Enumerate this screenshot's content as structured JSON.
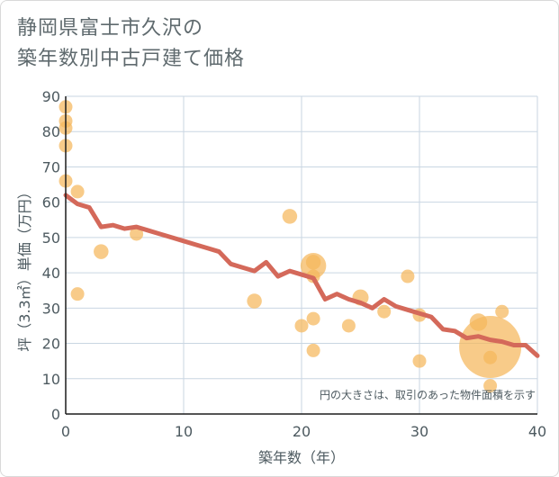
{
  "chart_data": {
    "type": "scatter",
    "title_lines": [
      "静岡県富士市久沢の",
      "築年数別中古戸建て価格"
    ],
    "xlabel": "築年数（年）",
    "ylabel": "坪（3.3㎡）単価（万円）",
    "xlim": [
      0,
      40
    ],
    "ylim": [
      0,
      90
    ],
    "xticks": [
      "0",
      "10",
      "20",
      "30",
      "40"
    ],
    "yticks": [
      "0",
      "10",
      "20",
      "30",
      "40",
      "50",
      "60",
      "70",
      "80",
      "90"
    ],
    "xtick_values": [
      0,
      10,
      20,
      30,
      40
    ],
    "ytick_values": [
      0,
      10,
      20,
      30,
      40,
      50,
      60,
      70,
      80,
      90
    ],
    "grid": true,
    "note": "円の大きさは、取引のあった物件面積を示す",
    "colors": {
      "bubble": "#f5b75c",
      "line": "#d4695a",
      "grid": "#c9d6e2",
      "axis": "#1c1c1c",
      "text": "#4d5a60"
    },
    "bubbles": [
      {
        "x": 0,
        "y": 87,
        "r": 1
      },
      {
        "x": 0,
        "y": 83,
        "r": 1
      },
      {
        "x": 0,
        "y": 81,
        "r": 1
      },
      {
        "x": 0,
        "y": 76,
        "r": 1
      },
      {
        "x": 0,
        "y": 66,
        "r": 1
      },
      {
        "x": 1,
        "y": 63,
        "r": 1
      },
      {
        "x": 1,
        "y": 34,
        "r": 1
      },
      {
        "x": 3,
        "y": 46,
        "r": 1.1
      },
      {
        "x": 6,
        "y": 51,
        "r": 1
      },
      {
        "x": 16,
        "y": 32,
        "r": 1.1
      },
      {
        "x": 19,
        "y": 56,
        "r": 1.1
      },
      {
        "x": 20,
        "y": 25,
        "r": 1
      },
      {
        "x": 21,
        "y": 43,
        "r": 1.1
      },
      {
        "x": 21,
        "y": 42,
        "r": 1.9
      },
      {
        "x": 21,
        "y": 39,
        "r": 1
      },
      {
        "x": 21,
        "y": 27,
        "r": 1
      },
      {
        "x": 21,
        "y": 18,
        "r": 1
      },
      {
        "x": 24,
        "y": 25,
        "r": 1
      },
      {
        "x": 25,
        "y": 33,
        "r": 1.2
      },
      {
        "x": 27,
        "y": 29,
        "r": 1
      },
      {
        "x": 29,
        "y": 39,
        "r": 1
      },
      {
        "x": 30,
        "y": 28,
        "r": 1
      },
      {
        "x": 30,
        "y": 15,
        "r": 1
      },
      {
        "x": 35,
        "y": 26,
        "r": 1.3
      },
      {
        "x": 36,
        "y": 19,
        "r": 4.6
      },
      {
        "x": 36,
        "y": 16,
        "r": 1
      },
      {
        "x": 36,
        "y": 8,
        "r": 1
      },
      {
        "x": 37,
        "y": 29,
        "r": 1
      }
    ],
    "trend": {
      "x": [
        0,
        1,
        2,
        3,
        4,
        5,
        6,
        7,
        8,
        9,
        10,
        11,
        12,
        13,
        14,
        15,
        16,
        17,
        18,
        19,
        20,
        21,
        22,
        23,
        24,
        25,
        26,
        27,
        28,
        29,
        30,
        31,
        32,
        33,
        34,
        35,
        36,
        37,
        38,
        39,
        40
      ],
      "y": [
        62,
        59.5,
        58.5,
        53,
        53.5,
        52.5,
        53,
        52,
        51,
        50,
        49,
        48,
        47,
        46,
        42.5,
        41.5,
        40.5,
        43,
        39,
        40.5,
        39.5,
        38.5,
        32.5,
        34,
        32.5,
        31.5,
        30,
        32.5,
        30.5,
        29.5,
        28.5,
        27.5,
        24,
        23.5,
        21.5,
        22,
        21,
        20.5,
        19.5,
        19.5,
        16.5
      ]
    }
  }
}
